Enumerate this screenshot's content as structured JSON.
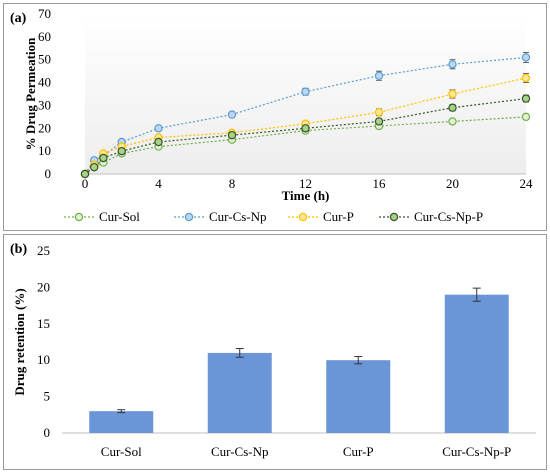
{
  "chart_data": [
    {
      "panel_label": "(a)",
      "type": "line",
      "xlabel": "Time (h)",
      "ylabel": "% Drug Permeation",
      "x": [
        0,
        0.5,
        1,
        2,
        4,
        8,
        12,
        16,
        20,
        24
      ],
      "xticks": [
        0,
        4,
        8,
        12,
        16,
        20,
        24
      ],
      "xlim": [
        0,
        24
      ],
      "ylim": [
        0,
        70
      ],
      "yticks": [
        0,
        10,
        20,
        30,
        40,
        50,
        60,
        70
      ],
      "legend_position": "bottom",
      "series": [
        {
          "name": "Cur-Sol",
          "color": "#70ad47",
          "fill": "#e2f0d9",
          "values": [
            0,
            3,
            5,
            9,
            12,
            15,
            19,
            21,
            23,
            25
          ],
          "errors": [
            0,
            0.5,
            0.5,
            0.7,
            0.8,
            1,
            1,
            1,
            1,
            1.2
          ]
        },
        {
          "name": "Cur-Cs-Np",
          "color": "#5b9bd5",
          "fill": "#bdd7ee",
          "values": [
            0,
            6,
            8,
            14,
            20,
            26,
            36,
            43,
            48,
            51
          ],
          "errors": [
            0,
            0.8,
            0.8,
            1,
            1,
            1.2,
            1.5,
            2,
            2,
            2.2
          ]
        },
        {
          "name": "Cur-P",
          "color": "#ffc000",
          "fill": "#ffe699",
          "values": [
            0,
            4,
            9,
            12,
            16,
            18,
            22,
            27,
            35,
            42
          ],
          "errors": [
            0,
            0.6,
            0.6,
            0.8,
            0.8,
            1,
            1.2,
            1.5,
            1.8,
            2
          ]
        },
        {
          "name": "Cur-Cs-Np-P",
          "color": "#375623",
          "fill": "#a9d18e",
          "values": [
            0,
            3,
            7,
            10,
            14,
            17,
            20,
            23,
            29,
            33
          ],
          "errors": [
            0,
            0.5,
            0.6,
            0.7,
            0.8,
            1,
            1,
            1.2,
            1.4,
            1.5
          ]
        }
      ]
    },
    {
      "panel_label": "(b)",
      "type": "bar",
      "ylabel": "Drug retention (%)",
      "categories": [
        "Cur-Sol",
        "Cur-Cs-Np",
        "Cur-P",
        "Cur-Cs-Np-P"
      ],
      "values": [
        3,
        11,
        10,
        19
      ],
      "errors": [
        0.2,
        0.6,
        0.5,
        0.9
      ],
      "ylim": [
        0,
        25
      ],
      "yticks": [
        0,
        5,
        10,
        15,
        20,
        25
      ],
      "color": "#6a96d8"
    }
  ]
}
